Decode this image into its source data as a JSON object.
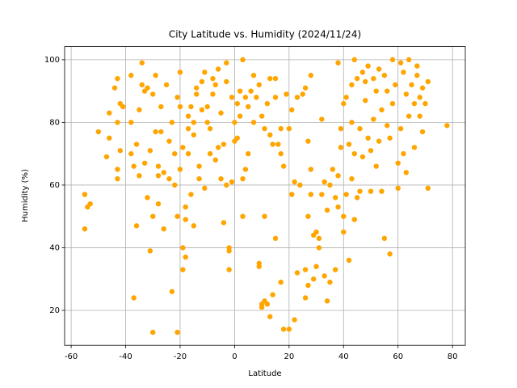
{
  "chart_data": {
    "type": "scatter",
    "title": "City Latitude vs. Humidity (2024/11/24)",
    "x_label": "Latitude",
    "y_label": "Humidity (%)",
    "color": "orange",
    "grid": true,
    "xlim": [
      -62.4,
      84.7
    ],
    "ylim": [
      8.85,
      104.2
    ],
    "xticks": [
      -60,
      -40,
      -20,
      0,
      20,
      40,
      60,
      80
    ],
    "yticks": [
      20,
      40,
      60,
      80,
      100
    ],
    "x": [
      -55,
      -55,
      -54,
      -53,
      -50,
      -47,
      -46,
      -46,
      -44,
      -43,
      -43,
      -43,
      -43,
      -42,
      -42,
      -41,
      -38,
      -38,
      -38,
      -37,
      -37,
      -36,
      -36,
      -35,
      -35,
      -34,
      -34,
      -33,
      -33,
      -32,
      -32,
      -31,
      -31,
      -30,
      -30,
      -30,
      -29,
      -29,
      -28,
      -28,
      -28,
      -27,
      -27,
      -26,
      -26,
      -25,
      -24,
      -24,
      -23,
      -23,
      -22,
      -22,
      -21,
      -21,
      -21,
      -20,
      -20,
      -20,
      -19,
      -19,
      -19,
      -18,
      -18,
      -18,
      -17,
      -17,
      -17,
      -16,
      -16,
      -15,
      -15,
      -15,
      -14,
      -14,
      -13,
      -13,
      -12,
      -12,
      -11,
      -11,
      -10,
      -10,
      -9,
      -9,
      -8,
      -8,
      -7,
      -7,
      -6,
      -6,
      -5,
      -5,
      -4,
      -4,
      -3,
      -3,
      -3,
      -2,
      -2,
      -2,
      -1,
      -1,
      0,
      0,
      1,
      1,
      2,
      2,
      3,
      3,
      3,
      4,
      4,
      5,
      5,
      6,
      7,
      7,
      8,
      9,
      9,
      9,
      10,
      10,
      10,
      11,
      11,
      11,
      12,
      12,
      13,
      13,
      13,
      14,
      14,
      15,
      15,
      15,
      16,
      17,
      17,
      17,
      18,
      18,
      19,
      20,
      20,
      21,
      21,
      22,
      22,
      23,
      23,
      24,
      25,
      26,
      26,
      26,
      27,
      27,
      27,
      28,
      28,
      28,
      29,
      29,
      30,
      30,
      31,
      31,
      32,
      32,
      33,
      33,
      34,
      34,
      35,
      35,
      36,
      37,
      37,
      38,
      38,
      38,
      39,
      39,
      40,
      40,
      40,
      41,
      41,
      42,
      42,
      43,
      43,
      43,
      44,
      44,
      44,
      45,
      45,
      46,
      46,
      47,
      47,
      48,
      48,
      49,
      49,
      50,
      50,
      51,
      51,
      52,
      52,
      53,
      53,
      54,
      54,
      55,
      55,
      56,
      56,
      57,
      57,
      58,
      58,
      59,
      60,
      60,
      61,
      61,
      62,
      62,
      63,
      63,
      64,
      64,
      65,
      66,
      66,
      67,
      67,
      68,
      68,
      69,
      69,
      70,
      71,
      71,
      78
    ],
    "values": [
      57,
      46,
      53,
      54,
      77,
      69,
      75,
      83,
      91,
      94,
      65,
      62,
      80,
      86,
      71,
      85,
      95,
      80,
      70,
      24,
      66,
      73,
      47,
      63,
      84,
      99,
      92,
      90,
      67,
      56,
      91,
      39,
      71,
      13,
      89,
      50,
      95,
      77,
      63,
      54,
      66,
      85,
      77,
      46,
      64,
      92,
      62,
      74,
      80,
      26,
      70,
      60,
      13,
      88,
      50,
      96,
      65,
      85,
      33,
      40,
      72,
      37,
      49,
      53,
      78,
      82,
      70,
      85,
      57,
      47,
      80,
      76,
      89,
      91,
      66,
      62,
      93,
      84,
      96,
      59,
      80,
      85,
      78,
      70,
      94,
      89,
      92,
      68,
      72,
      97,
      62,
      83,
      48,
      73,
      93,
      60,
      99,
      33,
      40,
      39,
      88,
      61,
      74,
      80,
      86,
      75,
      90,
      82,
      100,
      62,
      50,
      65,
      88,
      85,
      70,
      90,
      80,
      95,
      88,
      34,
      35,
      92,
      22,
      21,
      82,
      23,
      50,
      78,
      22,
      86,
      18,
      76,
      94,
      25,
      73,
      43,
      88,
      94,
      73,
      70,
      29,
      78,
      14,
      66,
      89,
      14,
      78,
      57,
      84,
      17,
      61,
      32,
      88,
      60,
      89,
      33,
      91,
      24,
      28,
      50,
      74,
      57,
      95,
      65,
      30,
      44,
      34,
      45,
      40,
      43,
      57,
      81,
      61,
      31,
      23,
      52,
      60,
      29,
      65,
      56,
      33,
      63,
      99,
      53,
      72,
      78,
      86,
      45,
      50,
      88,
      57,
      73,
      36,
      80,
      92,
      62,
      49,
      100,
      70,
      56,
      94,
      78,
      58,
      96,
      69,
      93,
      87,
      75,
      98,
      71,
      58,
      94,
      81,
      66,
      90,
      97,
      74,
      84,
      58,
      43,
      95,
      90,
      79,
      38,
      75,
      100,
      86,
      92,
      67,
      59,
      99,
      78,
      96,
      70,
      89,
      64,
      82,
      100,
      92,
      86,
      72,
      98,
      95,
      88,
      82,
      77,
      91,
      86,
      59,
      93,
      79
    ]
  }
}
